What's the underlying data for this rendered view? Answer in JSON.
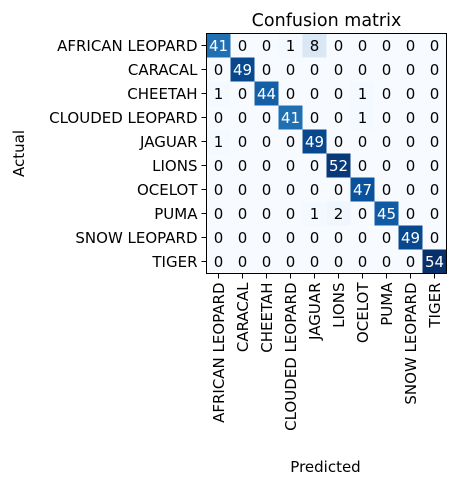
{
  "chart_data": {
    "type": "heatmap",
    "title": "Confusion matrix",
    "xlabel": "Predicted",
    "ylabel": "Actual",
    "colormap": "Blues",
    "colors": {
      "low": "#f7fbff",
      "high": "#08306b",
      "text_dark": "#000000",
      "text_light": "#ffffff",
      "frame": "#000000"
    },
    "value_range": [
      0,
      54
    ],
    "row_labels": [
      "AFRICAN LEOPARD",
      "CARACAL",
      "CHEETAH",
      "CLOUDED LEOPARD",
      "JAGUAR",
      "LIONS",
      "OCELOT",
      "PUMA",
      "SNOW LEOPARD",
      "TIGER"
    ],
    "col_labels": [
      "AFRICAN LEOPARD",
      "CARACAL",
      "CHEETAH",
      "CLOUDED LEOPARD",
      "JAGUAR",
      "LIONS",
      "OCELOT",
      "PUMA",
      "SNOW LEOPARD",
      "TIGER"
    ],
    "matrix": [
      [
        41,
        0,
        0,
        1,
        8,
        0,
        0,
        0,
        0,
        0
      ],
      [
        0,
        49,
        0,
        0,
        0,
        0,
        0,
        0,
        0,
        0
      ],
      [
        1,
        0,
        44,
        0,
        0,
        0,
        1,
        0,
        0,
        0
      ],
      [
        0,
        0,
        0,
        41,
        0,
        0,
        1,
        0,
        0,
        0
      ],
      [
        1,
        0,
        0,
        0,
        49,
        0,
        0,
        0,
        0,
        0
      ],
      [
        0,
        0,
        0,
        0,
        0,
        52,
        0,
        0,
        0,
        0
      ],
      [
        0,
        0,
        0,
        0,
        0,
        0,
        47,
        0,
        0,
        0
      ],
      [
        0,
        0,
        0,
        0,
        1,
        2,
        0,
        45,
        0,
        0
      ],
      [
        0,
        0,
        0,
        0,
        0,
        0,
        0,
        0,
        49,
        0
      ],
      [
        0,
        0,
        0,
        0,
        0,
        0,
        0,
        0,
        0,
        54
      ]
    ]
  }
}
